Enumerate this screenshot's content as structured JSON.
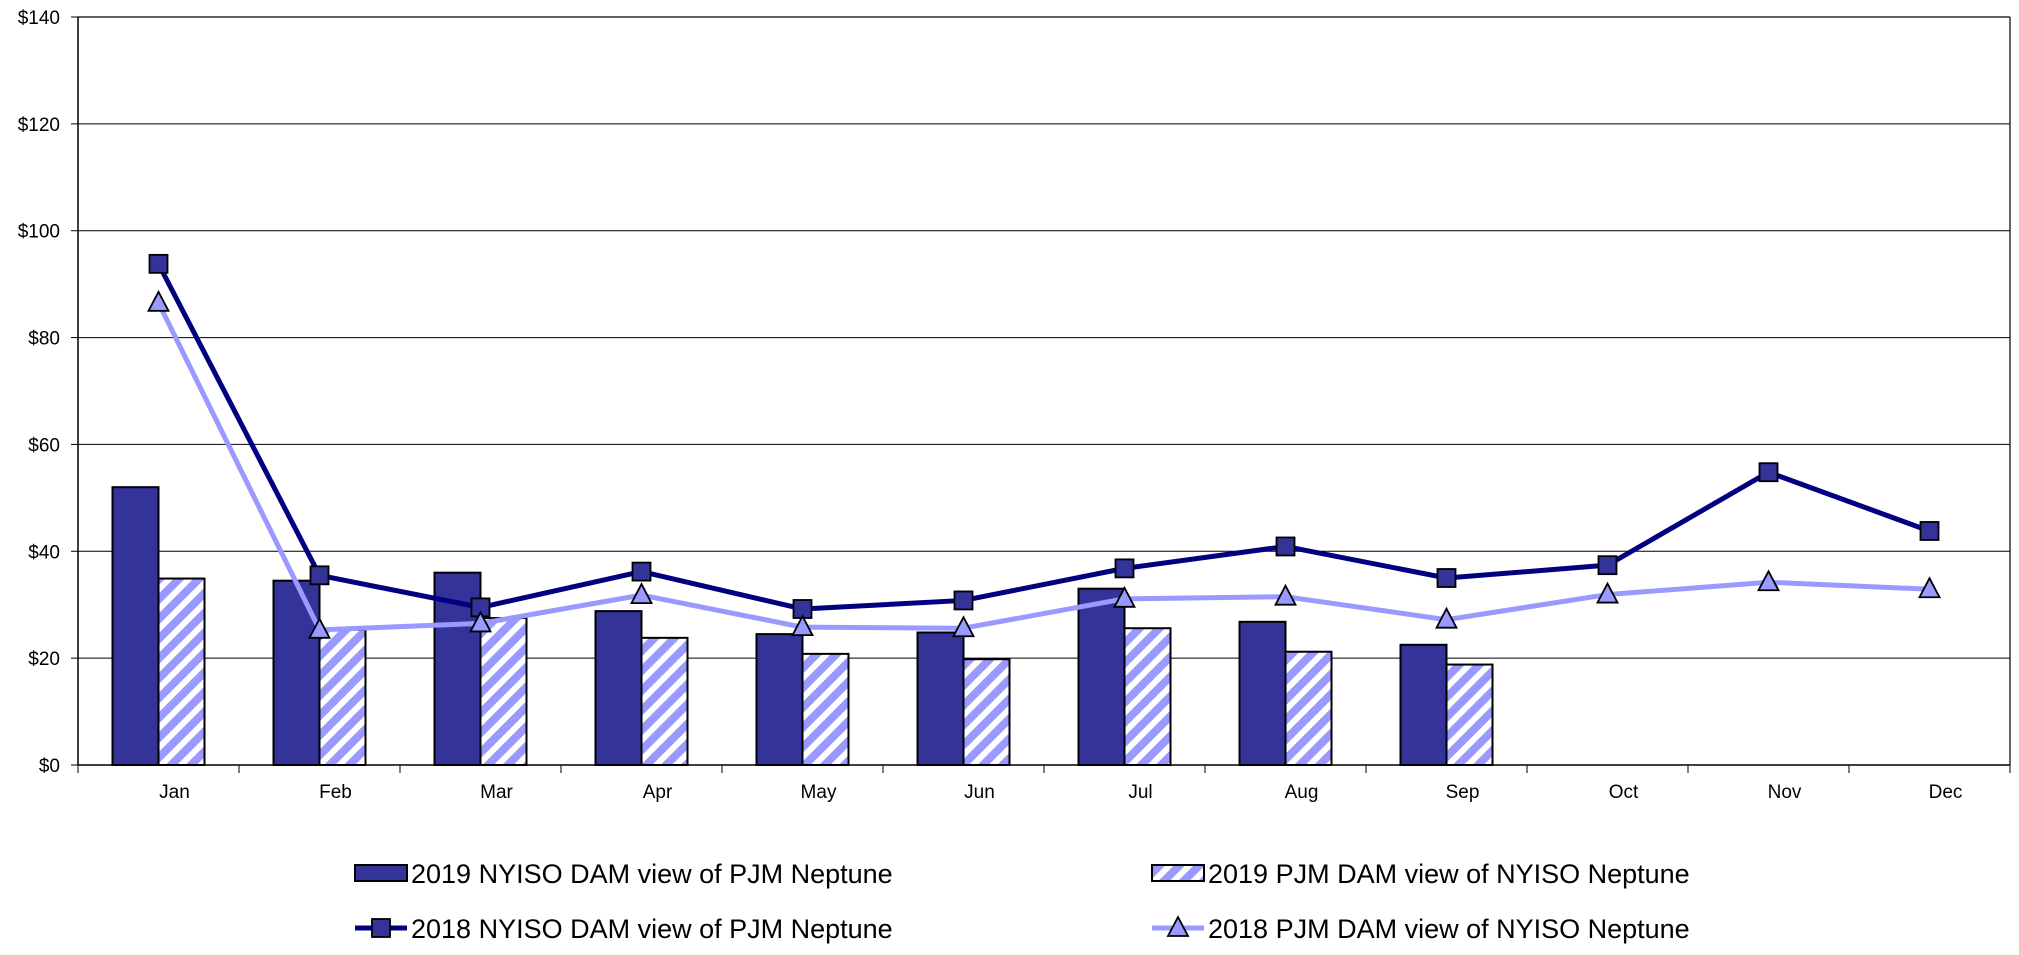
{
  "chart_data": {
    "type": "bar",
    "title": "",
    "xlabel": "",
    "ylabel": "",
    "ylim": [
      0,
      140
    ],
    "y_ticks": [
      "$0",
      "$20",
      "$40",
      "$60",
      "$80",
      "$100",
      "$120",
      "$140"
    ],
    "y_tick_values": [
      0,
      20,
      40,
      60,
      80,
      100,
      120,
      140
    ],
    "grid": true,
    "legend_position": "bottom",
    "categories": [
      "Jan",
      "Feb",
      "Mar",
      "Apr",
      "May",
      "Jun",
      "Jul",
      "Aug",
      "Sep",
      "Oct",
      "Nov",
      "Dec"
    ],
    "bar_series": [
      {
        "name": "2019 NYISO DAM view of PJM Neptune",
        "color": "#333399",
        "pattern": "solid",
        "values": [
          52,
          34.5,
          36,
          28.8,
          24.5,
          24.8,
          33,
          26.8,
          22.5,
          null,
          null,
          null
        ]
      },
      {
        "name": "2019 PJM DAM view of NYISO Neptune",
        "color": "#9999ff",
        "pattern": "diagonal-hatch",
        "values": [
          34.9,
          25.3,
          27.5,
          23.8,
          20.8,
          19.8,
          25.6,
          21.2,
          18.8,
          null,
          null,
          null
        ]
      }
    ],
    "line_series": [
      {
        "name": "2018 NYISO DAM view of PJM Neptune",
        "color": "#000080",
        "marker": "square",
        "marker_color": "#333399",
        "values": [
          93.8,
          35.5,
          29.5,
          36.2,
          29.2,
          30.8,
          36.8,
          40.9,
          35,
          37.4,
          54.8,
          43.8
        ]
      },
      {
        "name": "2018 PJM DAM view of NYISO Neptune",
        "color": "#9999ff",
        "marker": "triangle",
        "marker_color": "#9999ff",
        "values": [
          86.5,
          25.3,
          26.5,
          31.8,
          25.8,
          25.6,
          31.1,
          31.5,
          27.2,
          31.9,
          34.2,
          32.9
        ]
      }
    ]
  }
}
